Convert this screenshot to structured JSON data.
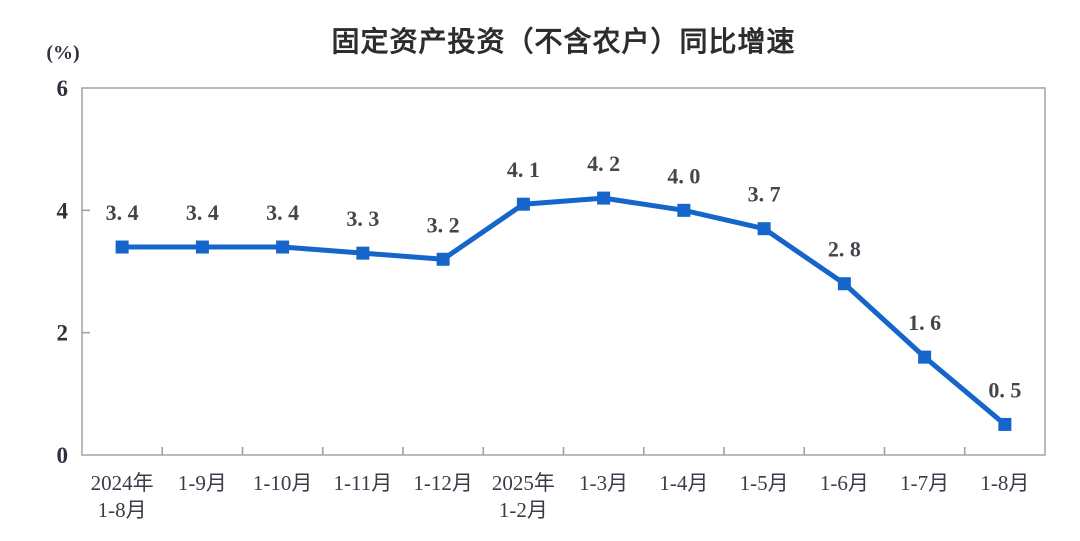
{
  "page": {
    "background_color": "#ffffff"
  },
  "chart_data": {
    "type": "line",
    "title": "固定资产投资（不含农户）同比增速",
    "unit_label": "(%)",
    "categories": [
      [
        "2024年",
        "1-8月"
      ],
      [
        "1-9月"
      ],
      [
        "1-10月"
      ],
      [
        "1-11月"
      ],
      [
        "1-12月"
      ],
      [
        "2025年",
        "1-2月"
      ],
      [
        "1-3月"
      ],
      [
        "1-4月"
      ],
      [
        "1-5月"
      ],
      [
        "1-6月"
      ],
      [
        "1-7月"
      ],
      [
        "1-8月"
      ]
    ],
    "values": [
      3.4,
      3.4,
      3.4,
      3.3,
      3.2,
      4.1,
      4.2,
      4.0,
      3.7,
      2.8,
      1.6,
      0.5
    ],
    "data_labels": [
      "3. 4",
      "3. 4",
      "3. 4",
      "3. 3",
      "3. 2",
      "4. 1",
      "4. 2",
      "4. 0",
      "3. 7",
      "2. 8",
      "1. 6",
      "0. 5"
    ],
    "y_ticks": [
      0,
      2,
      4,
      6
    ],
    "ylim": [
      0,
      6
    ],
    "grid": false,
    "legend_position": "none",
    "marker_shape": "square",
    "colors": {
      "line": "#1565cb",
      "marker": "#1565cb",
      "axis_box": "#a8a8a8",
      "tick_mark": "#a0a0a0",
      "title_text": "#2d2d2d",
      "data_label_text": "#45454e",
      "axis_tick_text": "#30303c",
      "category_text": "#3b3b49"
    }
  }
}
